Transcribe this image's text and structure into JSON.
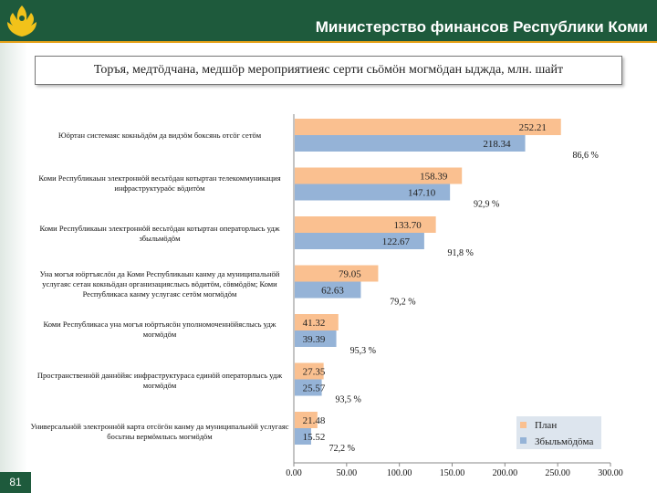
{
  "header": {
    "title": "Министерство финансов Республики Коми"
  },
  "subtitle": "Торъя, медтӧдчана, медшӧр мероприятиеяс серти сьӧмӧн могмӧдан ыджда, млн. шайт",
  "page_number": "81",
  "colors": {
    "header_bg": "#1e5a3c",
    "accent": "#e6a117",
    "plan": "#fac090",
    "fact": "#95b3d7",
    "legend_bg": "#dde5ee"
  },
  "chart_data": {
    "type": "bar",
    "orientation": "horizontal",
    "categories": [
      "Юӧртан системаяс кокньӧдӧм да видзӧм боксянь отсӧг сетӧм",
      "Коми Республикаын электроннӧй весьтӧдан котыртан телекоммуникация инфраструктураӧс вӧдитӧм",
      "Коми Республикаын электроннӧй весьтӧдан котыртан операторлысь удж збыльмӧдӧм",
      "Уна могъя юӧртъяслӧн да Коми Республикаын канму да муниципальнӧй услугаяс сетан кокньӧдан организацияслысь вӧдитӧм, сӧвмӧдӧм; Коми Республикаса канму услугаяс сетӧм могмӧдӧм",
      "Коми Республикаса уна могъя юӧртъясӧн уполномоченнӧйяслысь удж могмӧдӧм",
      "Пространственнӧй даннӧйяс инфраструктураса единӧй операторлысь удж могмӧдӧм",
      "Универсальнӧй электроннӧй карта отсӧгӧн канму да муниципальнӧй услугаяс босьтны вермӧмлысь могмӧдӧм"
    ],
    "series": [
      {
        "name": "План",
        "values": [
          252.21,
          158.39,
          133.7,
          79.05,
          41.32,
          27.35,
          21.48
        ]
      },
      {
        "name": "Збыльмӧдӧма",
        "values": [
          218.34,
          147.1,
          122.67,
          62.63,
          39.39,
          25.57,
          15.52
        ]
      }
    ],
    "value_labels": {
      "plan": [
        "252.21",
        "158.39",
        "133.70",
        "79.05",
        "41.32",
        "27.35",
        "21.48"
      ],
      "fact": [
        "218.34",
        "147.10",
        "122.67",
        "62.63",
        "39.39",
        "25.57",
        "15.52"
      ]
    },
    "percent_labels": [
      "86,6 %",
      "92,9 %",
      "91,8 %",
      "79,2 %",
      "95,3 %",
      "93,5 %",
      "72,2 %"
    ],
    "xlim": [
      0,
      300
    ],
    "x_ticks": [
      "0.00",
      "50.00",
      "100.00",
      "150.00",
      "200.00",
      "250.00",
      "300.00"
    ],
    "legend": [
      "План",
      "Збыльмӧдӧма"
    ],
    "legend_position": "bottom-right"
  }
}
